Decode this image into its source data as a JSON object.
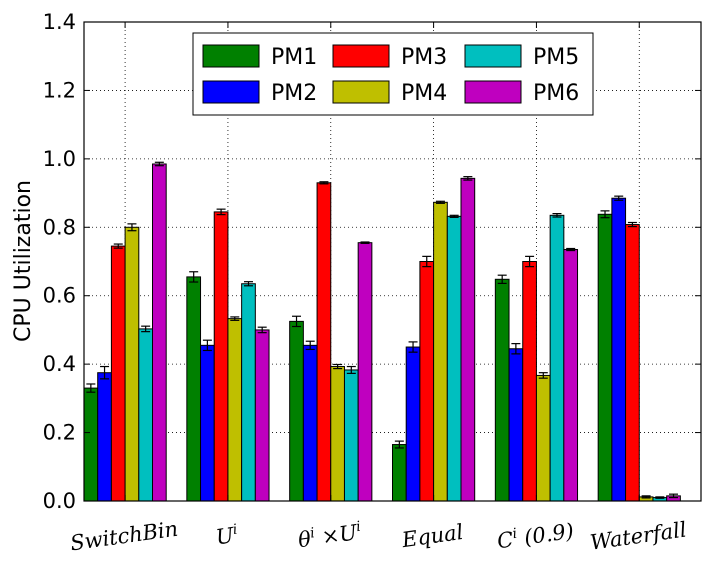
{
  "chart_data": {
    "type": "bar",
    "ylabel": "CPU Utilization",
    "xlabel": "",
    "ylim": [
      0.0,
      1.4
    ],
    "yticks": [
      "0.0",
      "0.2",
      "0.4",
      "0.6",
      "0.8",
      "1.0",
      "1.2",
      "1.4"
    ],
    "grid": true,
    "legend_position": "top-center",
    "legend_columns": 3,
    "categories": [
      [
        "SwitchBin"
      ],
      [
        "U",
        "i"
      ],
      [
        "θ",
        "i",
        " ×U",
        "i"
      ],
      [
        "Equal"
      ],
      [
        "C",
        "i",
        " (0.9)"
      ],
      [
        "Waterfall"
      ]
    ],
    "series": [
      {
        "name": "PM1",
        "color": "#008000",
        "values": [
          0.33,
          0.655,
          0.525,
          0.165,
          0.648,
          0.838
        ],
        "errors": [
          0.012,
          0.015,
          0.015,
          0.01,
          0.012,
          0.01
        ]
      },
      {
        "name": "PM2",
        "color": "#0000ff",
        "values": [
          0.375,
          0.455,
          0.455,
          0.45,
          0.445,
          0.885
        ],
        "errors": [
          0.018,
          0.015,
          0.012,
          0.015,
          0.015,
          0.006
        ]
      },
      {
        "name": "PM3",
        "color": "#ff0000",
        "values": [
          0.745,
          0.845,
          0.93,
          0.7,
          0.7,
          0.808
        ],
        "errors": [
          0.006,
          0.008,
          0.003,
          0.015,
          0.015,
          0.006
        ]
      },
      {
        "name": "PM4",
        "color": "#bfbf00",
        "values": [
          0.8,
          0.533,
          0.393,
          0.873,
          0.367,
          0.012
        ],
        "errors": [
          0.01,
          0.005,
          0.006,
          0.003,
          0.008,
          0.003
        ]
      },
      {
        "name": "PM5",
        "color": "#00bfbf",
        "values": [
          0.503,
          0.635,
          0.383,
          0.832,
          0.835,
          0.01
        ],
        "errors": [
          0.008,
          0.006,
          0.01,
          0.003,
          0.005,
          0.002
        ]
      },
      {
        "name": "PM6",
        "color": "#bf00bf",
        "values": [
          0.985,
          0.5,
          0.755,
          0.943,
          0.735,
          0.015
        ],
        "errors": [
          0.005,
          0.008,
          0.002,
          0.005,
          0.003,
          0.005
        ]
      }
    ]
  }
}
